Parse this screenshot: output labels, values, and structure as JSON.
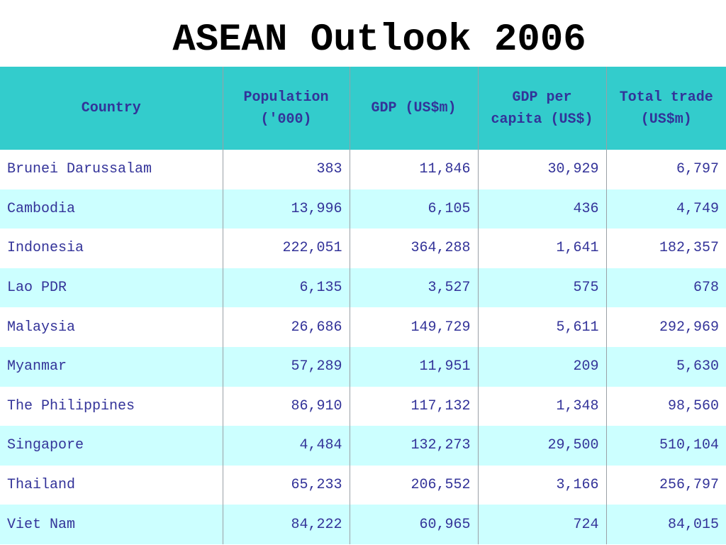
{
  "title": "ASEAN Outlook 2006",
  "colors": {
    "header_bg": "#33cccc",
    "row_alt_bg": "#ccffff",
    "text": "#333399"
  },
  "chart_data": {
    "type": "table",
    "columns": [
      "Country",
      "Population ('000)",
      "GDP (US$m)",
      "GDP per capita (US$)",
      "Total trade (US$m)"
    ],
    "rows": [
      [
        "Brunei Darussalam",
        "383",
        "11,846",
        "30,929",
        "6,797"
      ],
      [
        "Cambodia",
        "13,996",
        "6,105",
        "436",
        "4,749"
      ],
      [
        "Indonesia",
        "222,051",
        "364,288",
        "1,641",
        "182,357"
      ],
      [
        "Lao PDR",
        "6,135",
        "3,527",
        "575",
        "678"
      ],
      [
        "Malaysia",
        "26,686",
        "149,729",
        "5,611",
        "292,969"
      ],
      [
        "Myanmar",
        "57,289",
        "11,951",
        "209",
        "5,630"
      ],
      [
        "The Philippines",
        "86,910",
        "117,132",
        "1,348",
        "98,560"
      ],
      [
        "Singapore",
        "4,484",
        "132,273",
        "29,500",
        "510,104"
      ],
      [
        "Thailand",
        "65,233",
        "206,552",
        "3,166",
        "256,797"
      ],
      [
        "Viet Nam",
        "84,222",
        "60,965",
        "724",
        "84,015"
      ]
    ]
  }
}
